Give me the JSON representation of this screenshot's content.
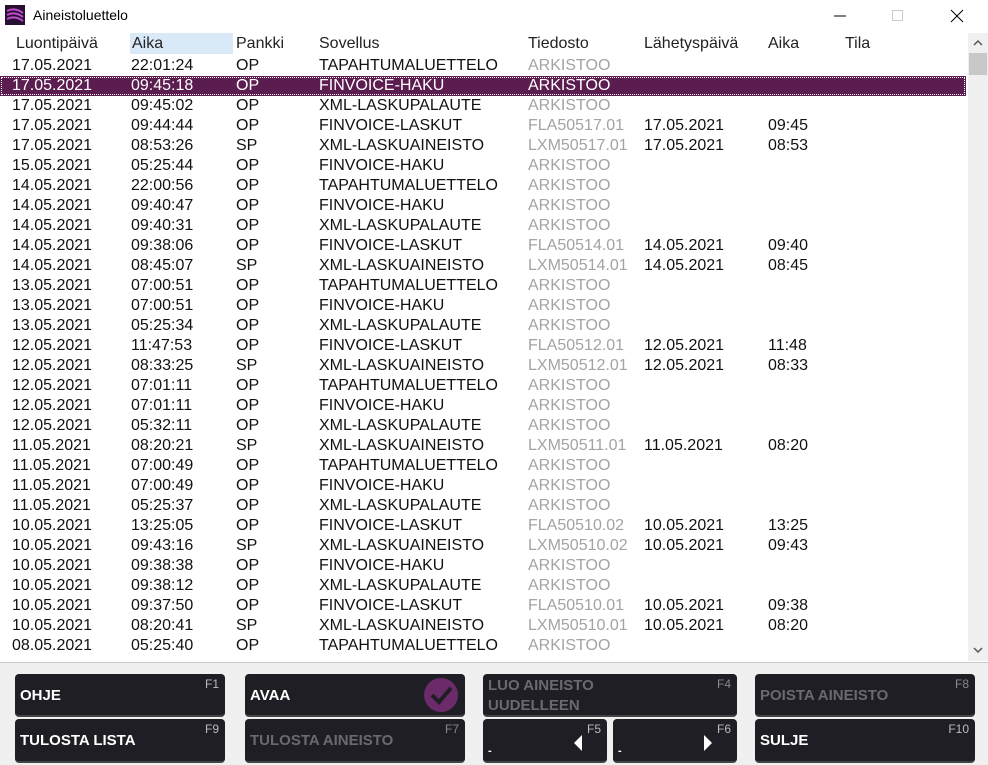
{
  "window": {
    "title": "Aineistoluettelo"
  },
  "table": {
    "headers": [
      "Luontipäivä",
      "Aika",
      "Pankki",
      "Sovellus",
      "Tiedosto",
      "Lähetyspäivä",
      "Aika",
      "Tila"
    ],
    "sorted_column": 1,
    "selected_row": 1,
    "rows": [
      [
        "17.05.2021",
        "22:01:24",
        "OP",
        "TAPAHTUMALUETTELO",
        "ARKISTOO"
      ],
      [
        "17.05.2021",
        "09:45:18",
        "OP",
        "FINVOICE-HAKU",
        "ARKISTOO"
      ],
      [
        "17.05.2021",
        "09:45:02",
        "OP",
        "XML-LASKUPALAUTE",
        "ARKISTOO"
      ],
      [
        "17.05.2021",
        "09:44:44",
        "OP",
        "FINVOICE-LASKUT",
        "FLA50517.01",
        "17.05.2021",
        "09:45"
      ],
      [
        "17.05.2021",
        "08:53:26",
        "SP",
        "XML-LASKUAINEISTO",
        "LXM50517.01",
        "17.05.2021",
        "08:53"
      ],
      [
        "15.05.2021",
        "05:25:44",
        "OP",
        "FINVOICE-HAKU",
        "ARKISTOO"
      ],
      [
        "14.05.2021",
        "22:00:56",
        "OP",
        "TAPAHTUMALUETTELO",
        "ARKISTOO"
      ],
      [
        "14.05.2021",
        "09:40:47",
        "OP",
        "FINVOICE-HAKU",
        "ARKISTOO"
      ],
      [
        "14.05.2021",
        "09:40:31",
        "OP",
        "XML-LASKUPALAUTE",
        "ARKISTOO"
      ],
      [
        "14.05.2021",
        "09:38:06",
        "OP",
        "FINVOICE-LASKUT",
        "FLA50514.01",
        "14.05.2021",
        "09:40"
      ],
      [
        "14.05.2021",
        "08:45:07",
        "SP",
        "XML-LASKUAINEISTO",
        "LXM50514.01",
        "14.05.2021",
        "08:45"
      ],
      [
        "13.05.2021",
        "07:00:51",
        "OP",
        "TAPAHTUMALUETTELO",
        "ARKISTOO"
      ],
      [
        "13.05.2021",
        "07:00:51",
        "OP",
        "FINVOICE-HAKU",
        "ARKISTOO"
      ],
      [
        "13.05.2021",
        "05:25:34",
        "OP",
        "XML-LASKUPALAUTE",
        "ARKISTOO"
      ],
      [
        "12.05.2021",
        "11:47:53",
        "OP",
        "FINVOICE-LASKUT",
        "FLA50512.01",
        "12.05.2021",
        "11:48"
      ],
      [
        "12.05.2021",
        "08:33:25",
        "SP",
        "XML-LASKUAINEISTO",
        "LXM50512.01",
        "12.05.2021",
        "08:33"
      ],
      [
        "12.05.2021",
        "07:01:11",
        "OP",
        "TAPAHTUMALUETTELO",
        "ARKISTOO"
      ],
      [
        "12.05.2021",
        "07:01:11",
        "OP",
        "FINVOICE-HAKU",
        "ARKISTOO"
      ],
      [
        "12.05.2021",
        "05:32:11",
        "OP",
        "XML-LASKUPALAUTE",
        "ARKISTOO"
      ],
      [
        "11.05.2021",
        "08:20:21",
        "SP",
        "XML-LASKUAINEISTO",
        "LXM50511.01",
        "11.05.2021",
        "08:20"
      ],
      [
        "11.05.2021",
        "07:00:49",
        "OP",
        "TAPAHTUMALUETTELO",
        "ARKISTOO"
      ],
      [
        "11.05.2021",
        "07:00:49",
        "OP",
        "FINVOICE-HAKU",
        "ARKISTOO"
      ],
      [
        "11.05.2021",
        "05:25:37",
        "OP",
        "XML-LASKUPALAUTE",
        "ARKISTOO"
      ],
      [
        "10.05.2021",
        "13:25:05",
        "OP",
        "FINVOICE-LASKUT",
        "FLA50510.02",
        "10.05.2021",
        "13:25"
      ],
      [
        "10.05.2021",
        "09:43:16",
        "SP",
        "XML-LASKUAINEISTO",
        "LXM50510.02",
        "10.05.2021",
        "09:43"
      ],
      [
        "10.05.2021",
        "09:38:38",
        "OP",
        "FINVOICE-HAKU",
        "ARKISTOO"
      ],
      [
        "10.05.2021",
        "09:38:12",
        "OP",
        "XML-LASKUPALAUTE",
        "ARKISTOO"
      ],
      [
        "10.05.2021",
        "09:37:50",
        "OP",
        "FINVOICE-LASKUT",
        "FLA50510.01",
        "10.05.2021",
        "09:38"
      ],
      [
        "10.05.2021",
        "08:20:41",
        "SP",
        "XML-LASKUAINEISTO",
        "LXM50510.01",
        "10.05.2021",
        "08:20"
      ],
      [
        "08.05.2021",
        "05:25:40",
        "OP",
        "TAPAHTUMALUETTELO",
        "ARKISTOO"
      ]
    ]
  },
  "buttons": [
    {
      "label": "OHJE",
      "key": "F1",
      "enabled": true
    },
    {
      "label": "AVAA",
      "enabled": true
    },
    {
      "label": "LUO AINEISTO UUDELLEEN",
      "key": "F4",
      "enabled": false
    },
    {
      "label": "POISTA AINEISTO",
      "key": "F8",
      "enabled": false
    },
    {
      "label": "TULOSTA LISTA",
      "key": "F9",
      "enabled": true
    },
    {
      "label": "TULOSTA AINEISTO",
      "key": "F7",
      "enabled": false
    },
    {
      "label": "-",
      "key": "F5",
      "enabled": true
    },
    {
      "label": "-",
      "key": "F6",
      "enabled": true
    },
    {
      "label": "SULJE",
      "key": "F10",
      "enabled": true
    }
  ]
}
